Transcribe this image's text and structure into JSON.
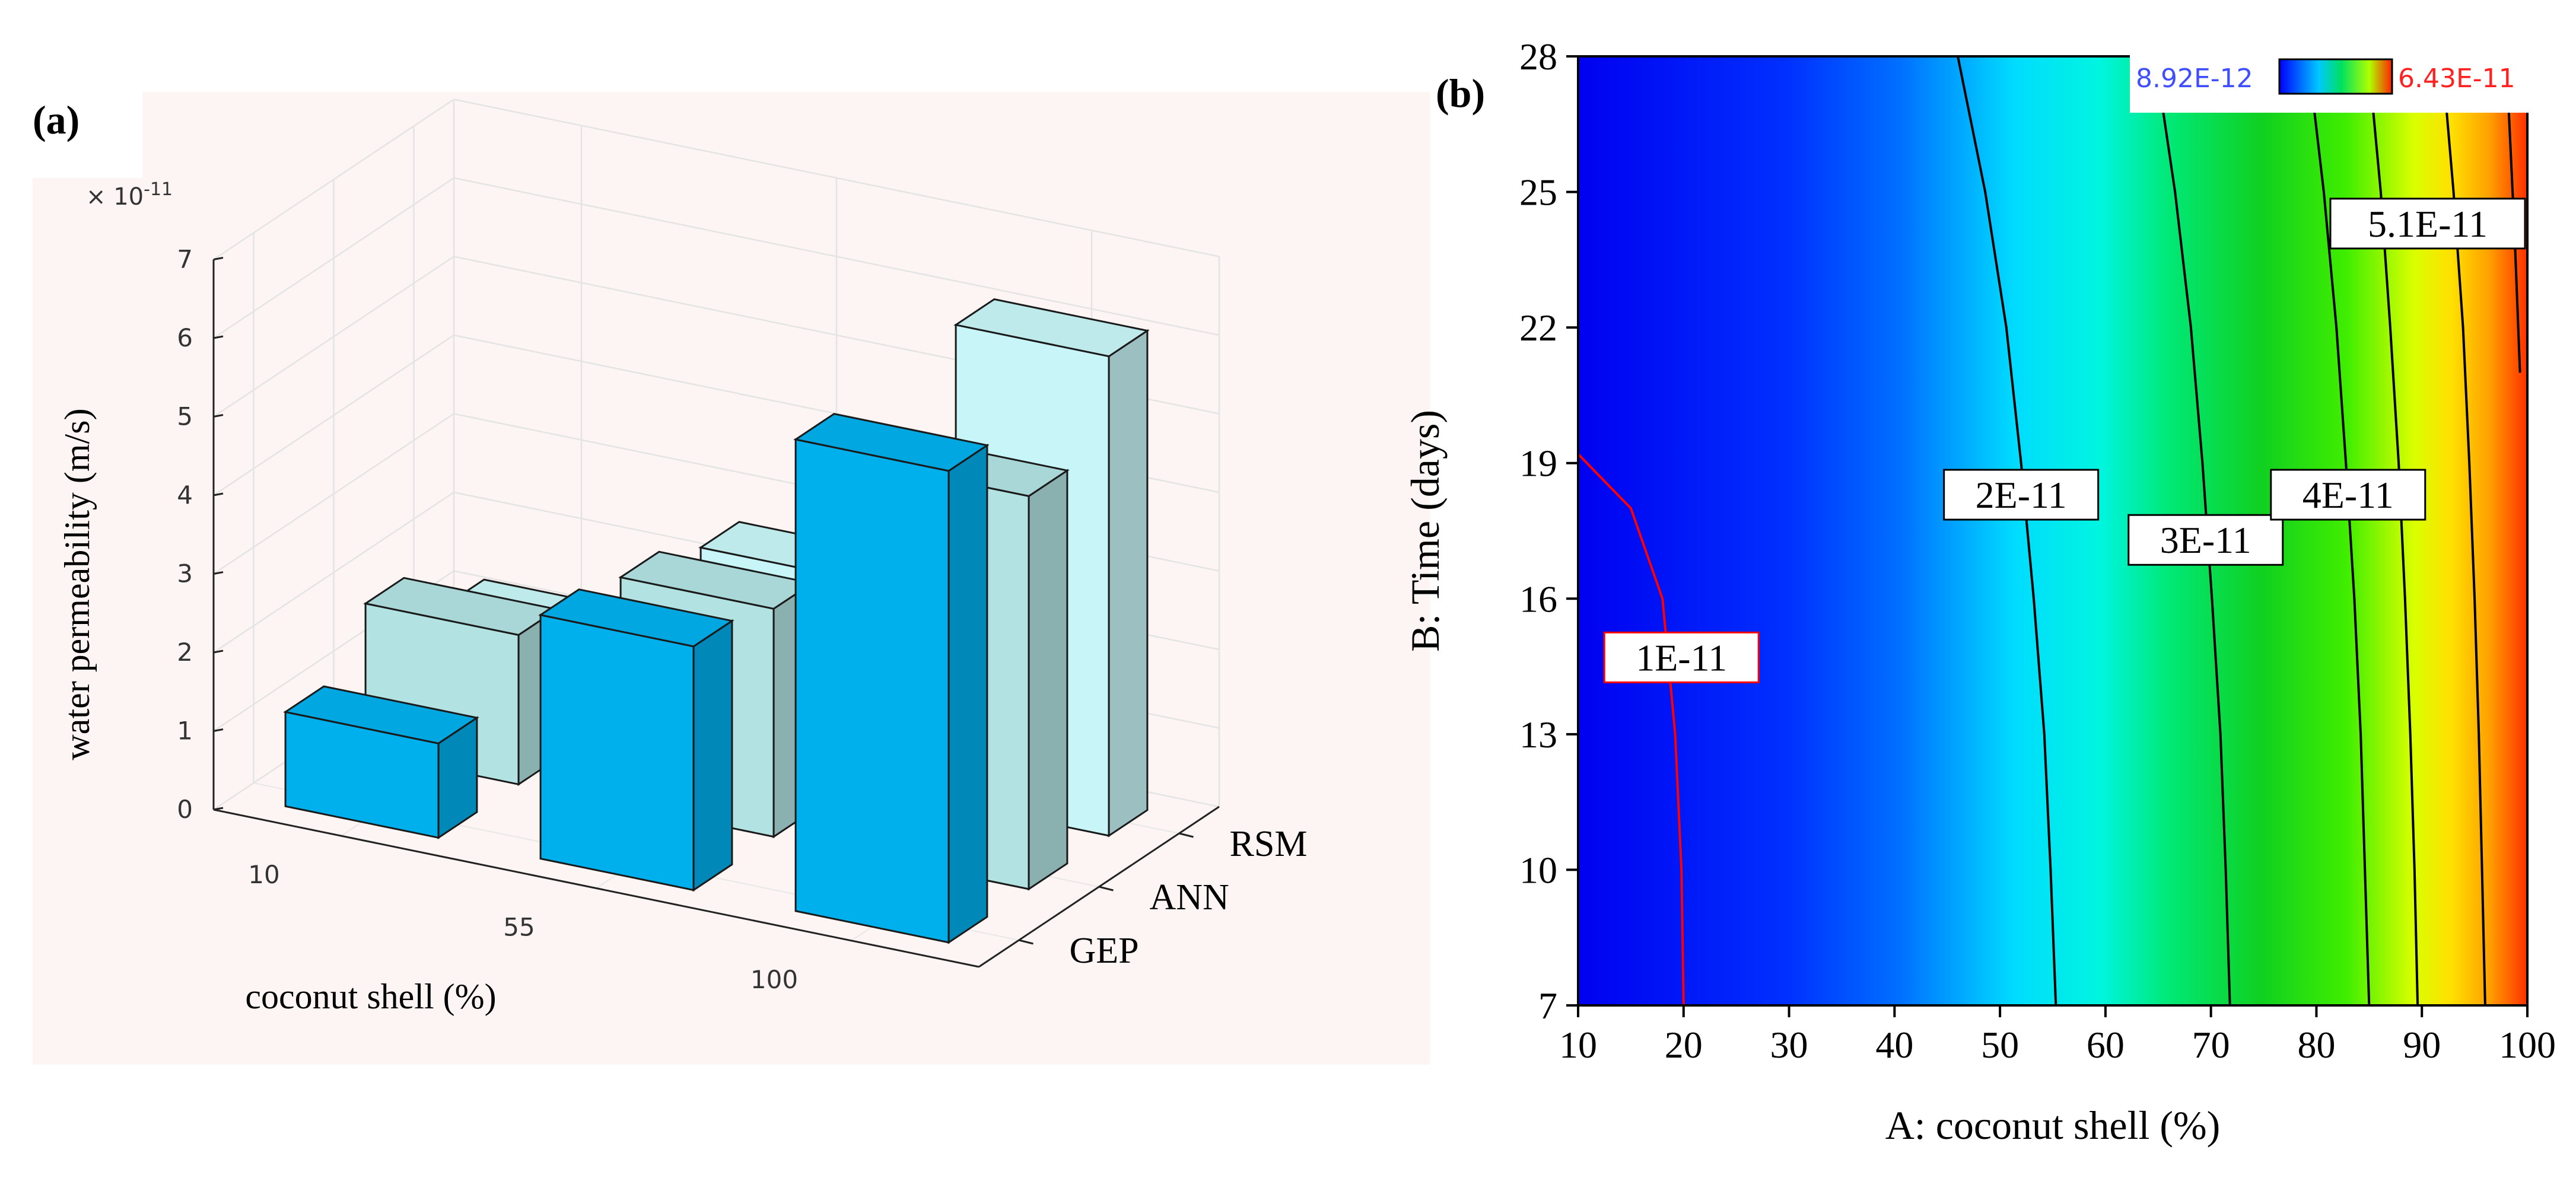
{
  "chart_data": [
    {
      "type": "bar",
      "subtype": "bar3d",
      "panel_label": "(a)",
      "categories": [
        "10",
        "55",
        "100"
      ],
      "series": [
        {
          "name": "GEP",
          "color": "#00b0ec",
          "values": [
            1.2,
            3.1,
            6.0
          ]
        },
        {
          "name": "ANN",
          "color": "#b2e2e2",
          "values": [
            1.9,
            2.9,
            5.0
          ]
        },
        {
          "name": "RSM",
          "color": "#c8f6f8",
          "values": [
            1.2,
            2.6,
            6.1
          ]
        }
      ],
      "xlabel": "coconut shell (%)",
      "ylabel": "water permeability (m/s)",
      "z_ticks": [
        "0",
        "1",
        "2",
        "3",
        "4",
        "5",
        "6",
        "7"
      ],
      "zlim": [
        0,
        7
      ],
      "exponent_label": "× 10",
      "exponent_power": "-11",
      "grid": true,
      "background": "#fdf5f4"
    },
    {
      "type": "heatmap",
      "subtype": "contour",
      "panel_label": "(b)",
      "xlabel": "A: coconut shell  (%)",
      "ylabel": "B: Time (days)",
      "x_ticks": [
        "10",
        "20",
        "30",
        "40",
        "50",
        "60",
        "70",
        "80",
        "90",
        "100"
      ],
      "y_ticks": [
        "7",
        "10",
        "13",
        "16",
        "19",
        "22",
        "25",
        "28"
      ],
      "xlim": [
        10,
        100
      ],
      "ylim": [
        7,
        28
      ],
      "colorbar": {
        "min_label": "8.92E-12",
        "max_label": "6.43E-11",
        "min_color": "#3f4fff",
        "max_color": "#ff2020"
      },
      "contours": [
        {
          "label": "1E-11",
          "value": 1e-11,
          "points": [
            [
              20.0,
              7
            ],
            [
              19.8,
              10
            ],
            [
              19.2,
              13
            ],
            [
              18.0,
              16
            ],
            [
              15.0,
              18.0
            ],
            [
              10,
              19.2
            ]
          ],
          "color": "#ff0000"
        },
        {
          "label": "2E-11",
          "value": 2e-11,
          "points": [
            [
              55.3,
              7
            ],
            [
              54.8,
              10
            ],
            [
              54.2,
              13
            ],
            [
              53.2,
              16
            ],
            [
              52.0,
              19
            ],
            [
              50.6,
              22
            ],
            [
              48.6,
              25
            ],
            [
              46.0,
              28
            ]
          ],
          "color": "#000000"
        },
        {
          "label": "3E-11",
          "value": 3e-11,
          "points": [
            [
              71.8,
              7
            ],
            [
              71.4,
              10
            ],
            [
              70.9,
              13
            ],
            [
              70.1,
              16
            ],
            [
              69.2,
              19
            ],
            [
              68.1,
              22
            ],
            [
              66.6,
              25
            ],
            [
              64.7,
              28
            ]
          ],
          "color": "#000000"
        },
        {
          "label": "4E-11",
          "value": 4e-11,
          "points": [
            [
              85.0,
              7
            ],
            [
              84.6,
              10
            ],
            [
              84.2,
              13
            ],
            [
              83.6,
              16
            ],
            [
              82.8,
              19
            ],
            [
              81.9,
              22
            ],
            [
              80.7,
              25
            ],
            [
              79.2,
              28
            ]
          ],
          "color": "#000000"
        },
        {
          "label": "",
          "value": 4.55e-11,
          "points": [
            [
              89.6,
              7
            ],
            [
              89.3,
              10
            ],
            [
              88.9,
              13
            ],
            [
              88.4,
              16
            ],
            [
              87.8,
              19
            ],
            [
              87.0,
              22
            ],
            [
              86.1,
              25
            ],
            [
              84.9,
              28
            ]
          ],
          "color": "#000000"
        },
        {
          "label": "5.1E-11",
          "value": 5.1e-11,
          "points": [
            [
              96.0,
              7
            ],
            [
              95.7,
              10
            ],
            [
              95.4,
              13
            ],
            [
              95.0,
              16
            ],
            [
              94.5,
              19
            ],
            [
              93.9,
              22
            ],
            [
              93.0,
              25
            ],
            [
              91.9,
              28
            ]
          ],
          "color": "#000000"
        },
        {
          "label": "",
          "value": 5.9e-11,
          "points": [
            [
              99.3,
              21
            ],
            [
              98.8,
              24
            ],
            [
              98.0,
              28
            ]
          ],
          "color": "#000000"
        }
      ],
      "contour_label_positions": [
        {
          "label": "1E-11",
          "x": 19.8,
          "y": 14.7
        },
        {
          "label": "2E-11",
          "x": 52.0,
          "y": 18.3
        },
        {
          "label": "3E-11",
          "x": 69.5,
          "y": 17.3
        },
        {
          "label": "4E-11",
          "x": 83.0,
          "y": 18.3
        },
        {
          "label": "5.1E-11",
          "x": 94.0,
          "y": 24.3
        }
      ]
    }
  ]
}
